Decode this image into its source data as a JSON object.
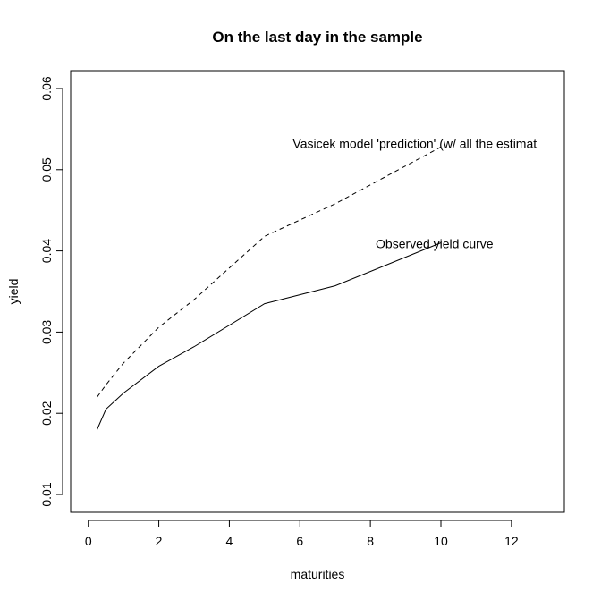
{
  "chart_data": {
    "type": "line",
    "title": "On the last day in the sample",
    "xlabel": "maturities",
    "ylabel": "yield",
    "xlim": [
      -0.5,
      13.5
    ],
    "ylim": [
      0.0078,
      0.0622
    ],
    "xticks": [
      0,
      2,
      4,
      6,
      8,
      10,
      12
    ],
    "yticks": [
      0.01,
      0.02,
      0.03,
      0.04,
      0.05,
      0.06
    ],
    "xtick_labels": [
      "0",
      "2",
      "4",
      "6",
      "8",
      "10",
      "12"
    ],
    "ytick_labels": [
      "0.01",
      "0.02",
      "0.03",
      "0.04",
      "0.05",
      "0.06"
    ],
    "grid": false,
    "series": [
      {
        "style": "solid",
        "x": [
          0.25,
          0.5,
          1,
          2,
          3,
          5,
          7,
          10
        ],
        "y": [
          0.018,
          0.0205,
          0.0225,
          0.0258,
          0.0282,
          0.0335,
          0.0357,
          0.041
        ]
      },
      {
        "style": "dashed",
        "x": [
          0.25,
          0.5,
          1,
          2,
          3,
          5,
          7,
          10
        ],
        "y": [
          0.022,
          0.0235,
          0.0262,
          0.0306,
          0.034,
          0.0418,
          0.0458,
          0.0528
        ]
      }
    ],
    "annotations": [
      {
        "text": "Vasicek model 'prediction' (w/ all the estimat",
        "x": 5.8,
        "y": 0.0532
      },
      {
        "text": "Observed yield curve",
        "x": 8.15,
        "y": 0.0409
      }
    ]
  }
}
